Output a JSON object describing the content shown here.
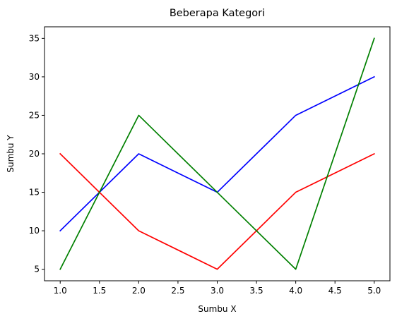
{
  "chart_data": {
    "type": "line",
    "title": "Beberapa Kategori",
    "xlabel": "Sumbu X",
    "ylabel": "Sumbu Y",
    "x": [
      1,
      2,
      3,
      4,
      5
    ],
    "xlim": [
      0.8,
      5.2
    ],
    "ylim": [
      3.5,
      36.5
    ],
    "xticks": [
      1.0,
      1.5,
      2.0,
      2.5,
      3.0,
      3.5,
      4.0,
      4.5,
      5.0
    ],
    "xtick_labels": [
      "1.0",
      "1.5",
      "2.0",
      "2.5",
      "3.0",
      "3.5",
      "4.0",
      "4.5",
      "5.0"
    ],
    "yticks": [
      5,
      10,
      15,
      20,
      25,
      30,
      35
    ],
    "ytick_labels": [
      "5",
      "10",
      "15",
      "20",
      "25",
      "30",
      "35"
    ],
    "grid": false,
    "series": [
      {
        "color": "#0000ff",
        "values": [
          10,
          20,
          15,
          25,
          30
        ]
      },
      {
        "color": "#ff0000",
        "values": [
          20,
          10,
          5,
          15,
          20
        ]
      },
      {
        "color": "#008000",
        "values": [
          5,
          25,
          15,
          5,
          35
        ]
      }
    ]
  }
}
